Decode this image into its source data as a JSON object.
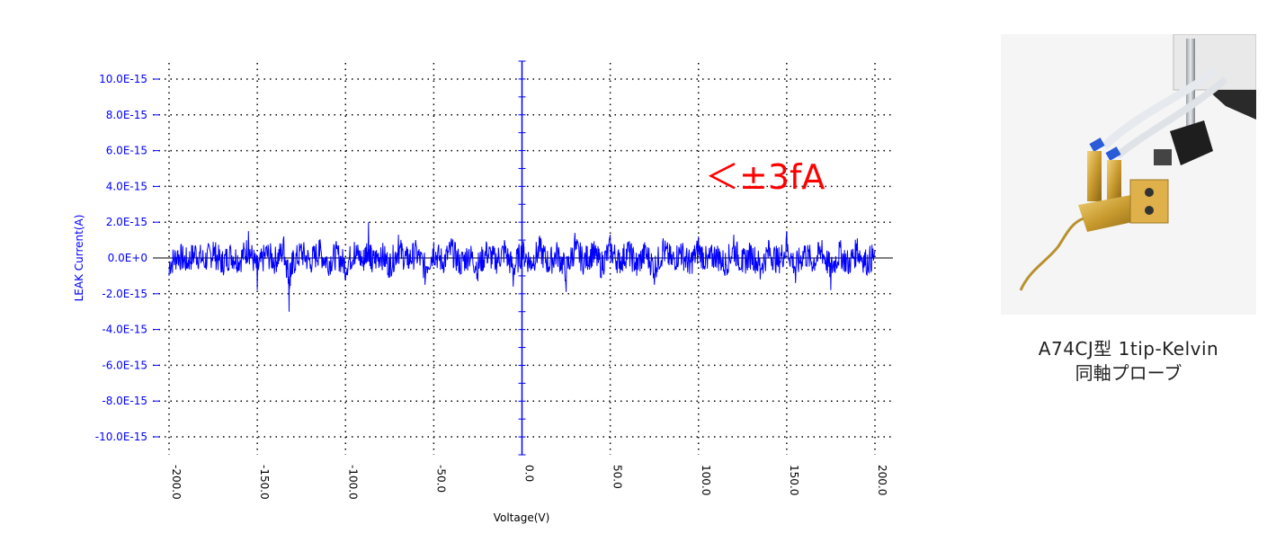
{
  "chart_data": {
    "type": "line",
    "title": "",
    "xlabel": "Voltage(V)",
    "ylabel": "LEAK Current(A)",
    "xlim": [
      -200,
      200
    ],
    "ylim": [
      -1.1e-14,
      1.1e-14
    ],
    "grid": true,
    "x_ticks": [
      -200,
      -150,
      -100,
      -50,
      0,
      50,
      100,
      150,
      200
    ],
    "x_tick_labels": [
      "-200.0",
      "-150.0",
      "-100.0",
      "-50.0",
      "0.0",
      "50.0",
      "100.0",
      "150.0",
      "200.0"
    ],
    "y_ticks": [
      1e-14,
      8e-15,
      6e-15,
      4e-15,
      2e-15,
      0,
      -2e-15,
      -4e-15,
      -6e-15,
      -8e-15,
      -1e-14
    ],
    "y_tick_labels": [
      "10.0E-15",
      "8.0E-15",
      "6.0E-15",
      "4.0E-15",
      "2.0E-15",
      "0.0E+0",
      "-2.0E-15",
      "-4.0E-15",
      "-6.0E-15",
      "-8.0E-15",
      "-10.0E-15"
    ],
    "series": [
      {
        "color": "#0000ff",
        "x": [
          -200,
          -195,
          -190,
          -185,
          -180,
          -175,
          -170,
          -165,
          -160,
          -155,
          -150,
          -145,
          -140,
          -135,
          -132,
          -130,
          -125,
          -120,
          -115,
          -110,
          -105,
          -100,
          -95,
          -90,
          -87,
          -85,
          -80,
          -75,
          -70,
          -65,
          -60,
          -55,
          -50,
          -45,
          -40,
          -35,
          -30,
          -25,
          -20,
          -15,
          -10,
          -5,
          0,
          5,
          10,
          15,
          20,
          25,
          30,
          35,
          40,
          45,
          50,
          55,
          60,
          65,
          70,
          75,
          80,
          85,
          90,
          95,
          100,
          105,
          110,
          115,
          120,
          125,
          130,
          135,
          140,
          145,
          150,
          155,
          160,
          165,
          170,
          175,
          180,
          185,
          190,
          195,
          200
        ],
        "y": [
          -1e-15,
          4e-16,
          -6e-16,
          7e-16,
          -5e-16,
          9e-16,
          -8e-16,
          5e-16,
          -3e-16,
          1.5e-15,
          -1.8e-15,
          6e-16,
          -4e-16,
          1.2e-15,
          -3e-15,
          -9e-16,
          8e-16,
          -6e-16,
          1e-15,
          -7e-16,
          5e-16,
          -1.2e-15,
          9e-16,
          -5e-16,
          2e-15,
          -8e-16,
          6e-16,
          -1.1e-15,
          1.3e-15,
          -4e-16,
          7e-16,
          -1.5e-15,
          9e-16,
          -6e-16,
          1.1e-15,
          -9e-16,
          5e-16,
          -1.3e-15,
          8e-16,
          -5e-16,
          1e-15,
          -1.6e-15,
          9e-16,
          -7e-16,
          1.2e-15,
          -8e-16,
          6e-16,
          -1.9e-15,
          1.4e-15,
          -5e-16,
          8e-16,
          -1.1e-15,
          1.3e-15,
          -6e-16,
          9e-16,
          -1e-15,
          7e-16,
          -1.5e-15,
          1.1e-15,
          -4e-16,
          8e-16,
          -9e-16,
          1.2e-15,
          -6e-16,
          5e-16,
          -1e-15,
          1.3e-15,
          -8e-16,
          6e-16,
          -1.2e-15,
          9e-16,
          -5e-16,
          1.5e-15,
          -1.4e-15,
          7e-16,
          -6e-16,
          1e-15,
          -1.8e-15,
          8e-16,
          -9e-16,
          1.1e-15,
          -7e-16,
          4e-16
        ]
      }
    ],
    "annotation": "＜±3fA",
    "annotation_color": "#ff0000"
  },
  "caption": {
    "line1": "A74CJ型 1tip-Kelvin",
    "line2": "同軸プローブ"
  }
}
